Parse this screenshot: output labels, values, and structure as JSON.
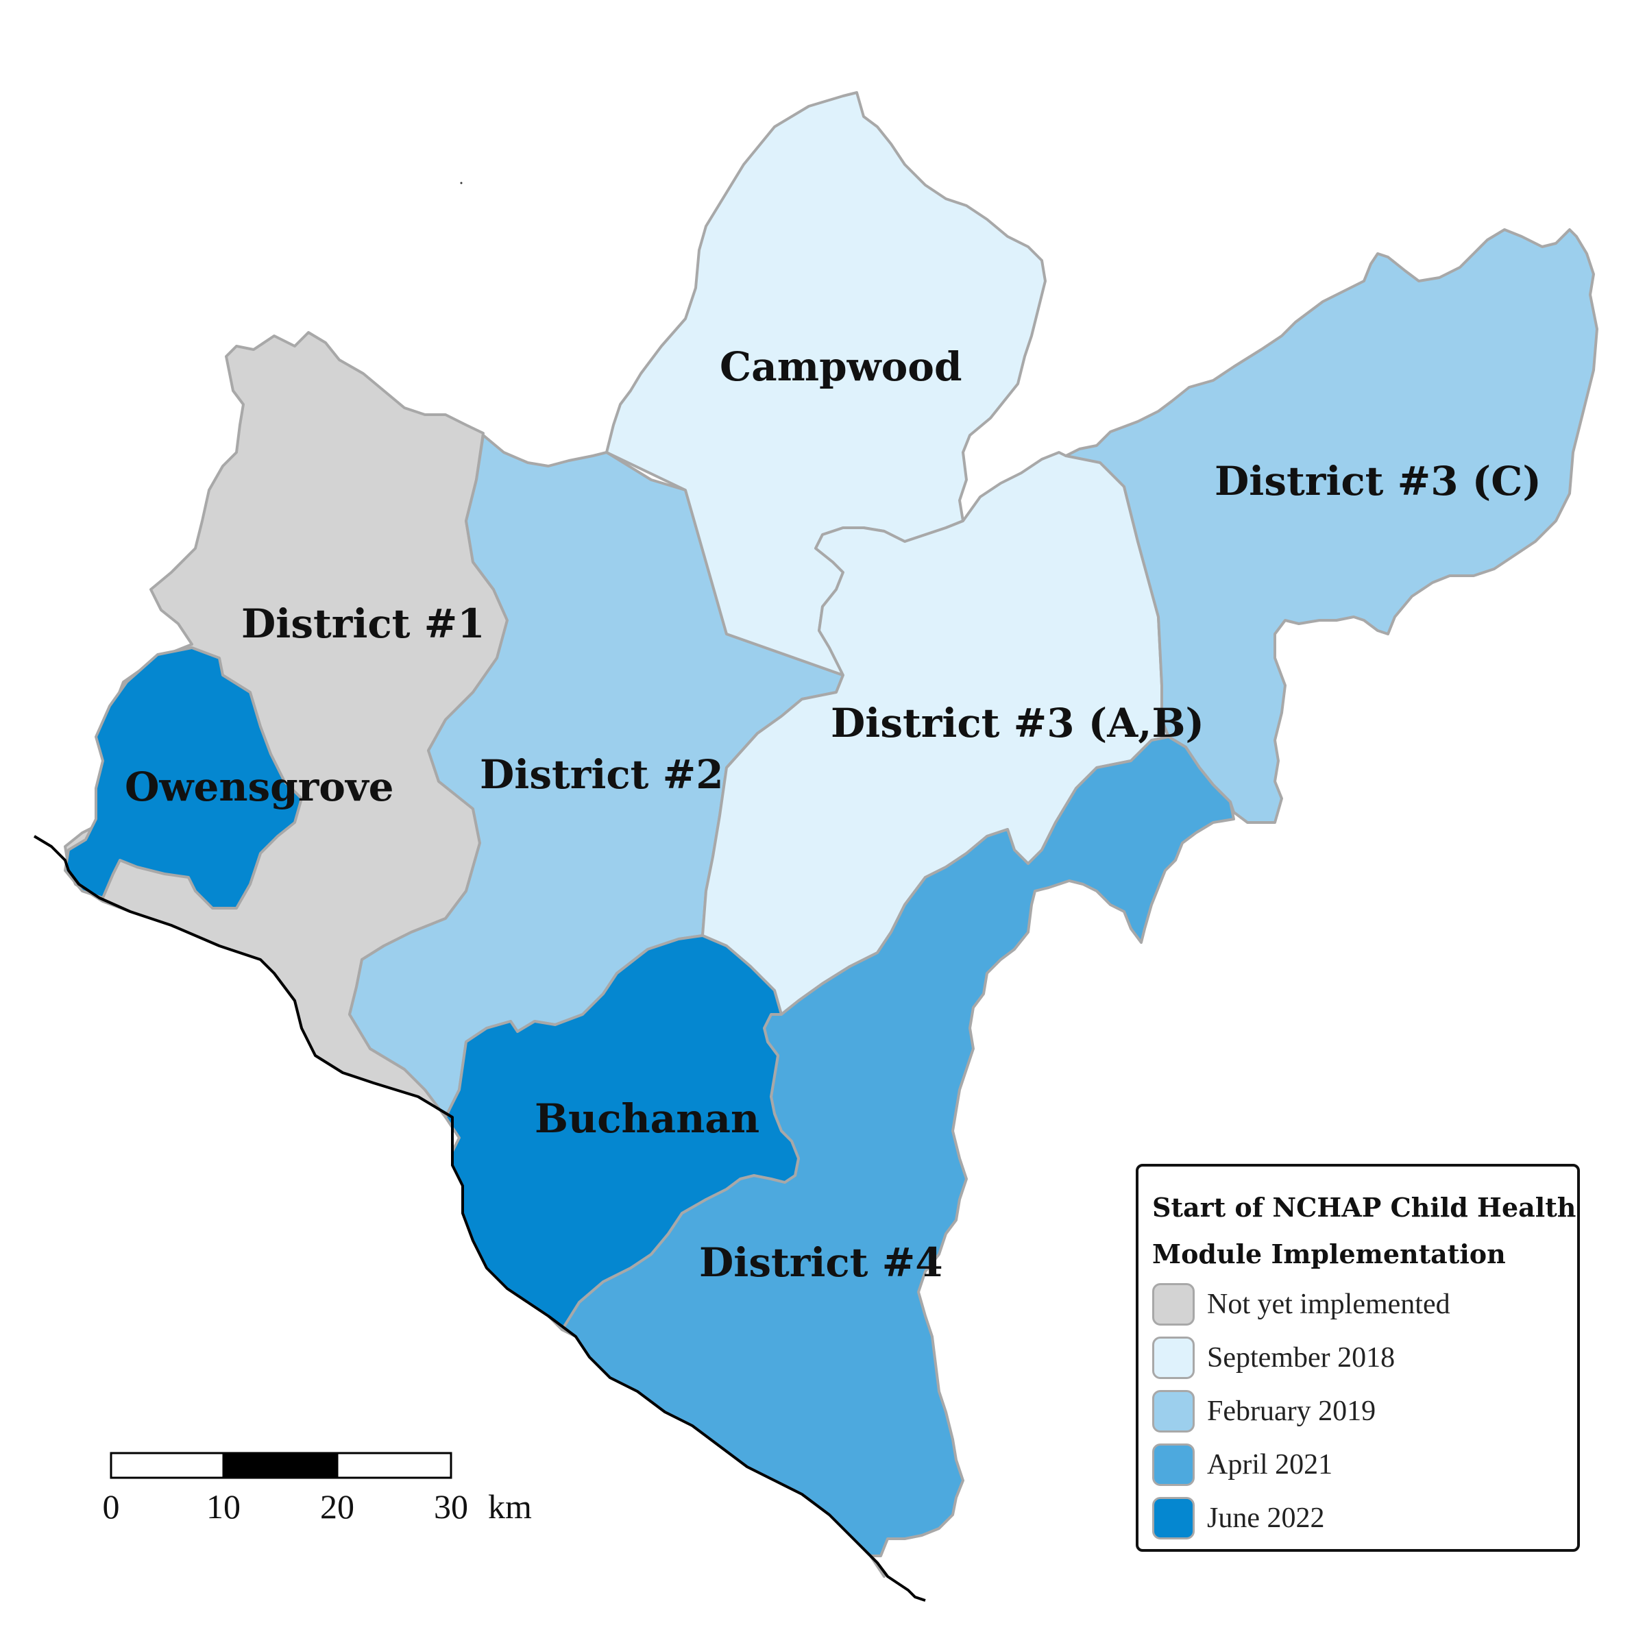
{
  "colors": {
    "not_yet": "#d3d3d3",
    "sep_2018": "#dff2fc",
    "feb_2019": "#9ccfed",
    "apr_2021": "#4da9de",
    "jun_2022": "#0587d0",
    "border": "#a8a8a8",
    "coast": "#000000"
  },
  "districts": [
    {
      "name": "District #1",
      "period": "Not yet implemented"
    },
    {
      "name": "Owensgrove",
      "period": "June 2022"
    },
    {
      "name": "District #2",
      "period": "February 2019"
    },
    {
      "name": "Campwood",
      "period": "September 2018"
    },
    {
      "name": "District #3 (A,B)",
      "period": "September 2018"
    },
    {
      "name": "District #3 (C)",
      "period": "February 2019"
    },
    {
      "name": "Buchanan",
      "period": "June 2022"
    },
    {
      "name": "District #4",
      "period": "April 2021"
    }
  ],
  "legend": {
    "title_line1": "Start of NCHAP Child Health",
    "title_line2": "Module Implementation",
    "items": [
      {
        "label": "Not yet implemented",
        "color": "#d3d3d3"
      },
      {
        "label": "September 2018",
        "color": "#dff2fc"
      },
      {
        "label": "February 2019",
        "color": "#9ccfed"
      },
      {
        "label": "April 2021",
        "color": "#4da9de"
      },
      {
        "label": "June 2022",
        "color": "#0587d0"
      }
    ]
  },
  "scale_bar": {
    "ticks": [
      "0",
      "10",
      "20",
      "30"
    ],
    "unit": "km"
  }
}
